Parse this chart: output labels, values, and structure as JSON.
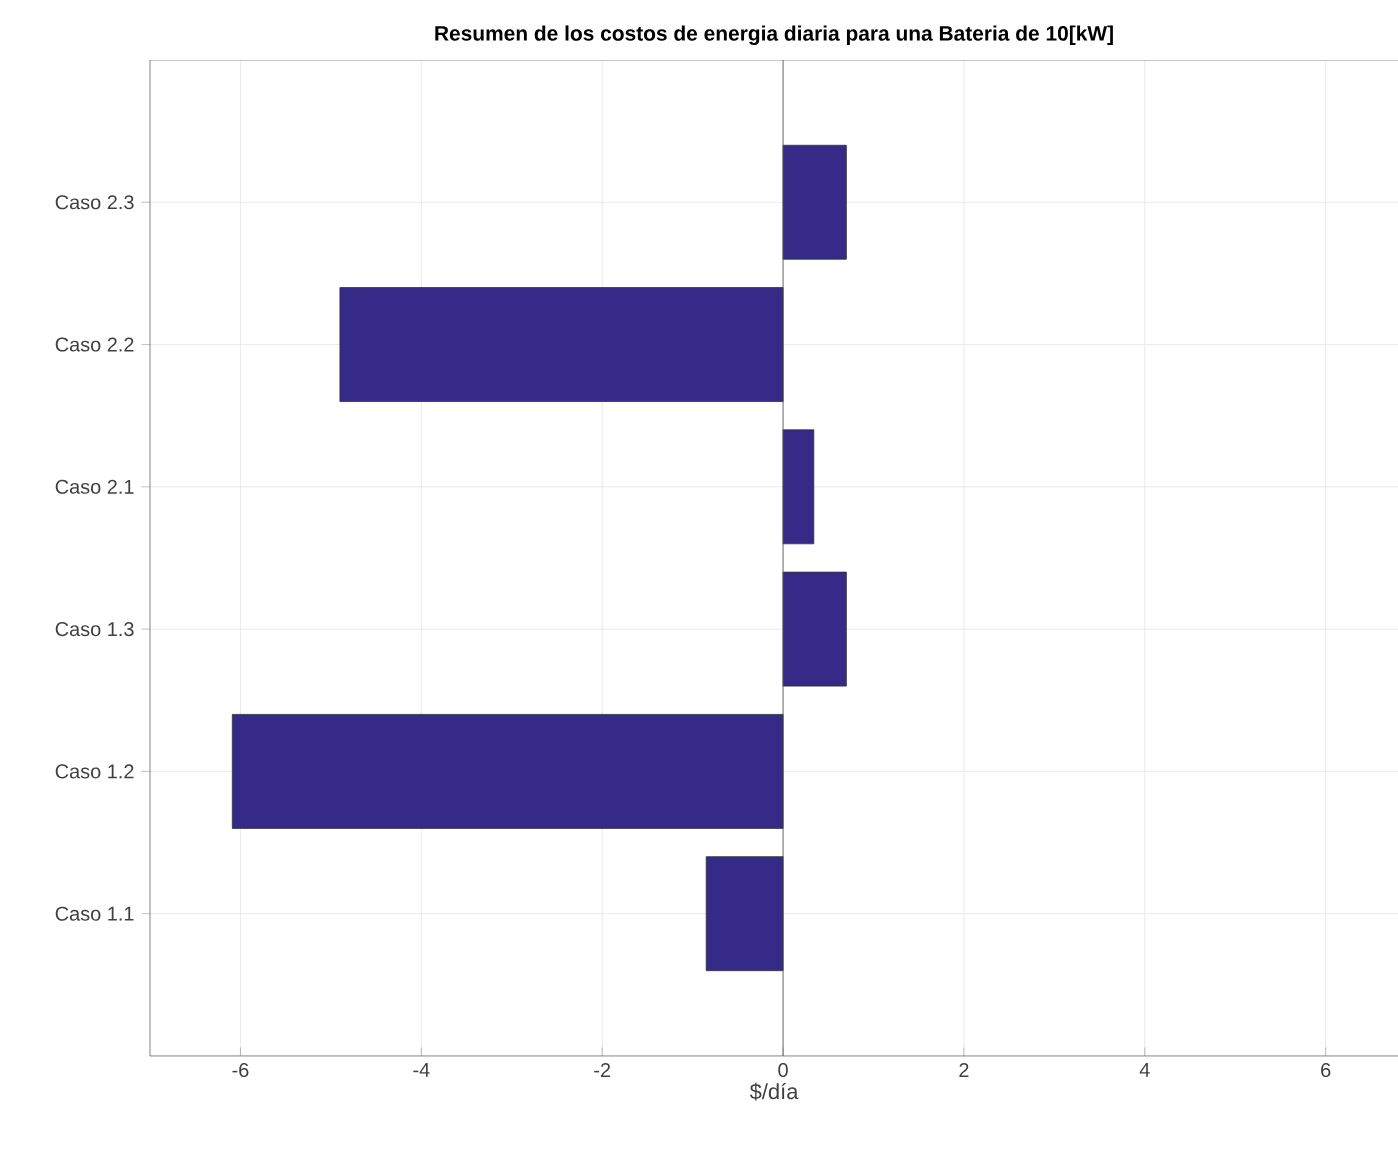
{
  "chart_data": {
    "type": "bar",
    "orientation": "horizontal",
    "title": "Resumen de los costos de energia diaria para una Bateria de 10[kW]",
    "xlabel": "$/día",
    "categories": [
      "Caso 2.3",
      "Caso 2.2",
      "Caso 2.1",
      "Caso 1.3",
      "Caso 1.2",
      "Caso 1.1"
    ],
    "values": [
      0.7,
      -4.9,
      0.34,
      0.7,
      -6.09,
      -0.85
    ],
    "color": "#352a87",
    "xlim": [
      -7,
      6.8
    ],
    "xticks": [
      -6,
      -4,
      -2,
      0,
      2,
      4,
      6
    ],
    "grid": true
  }
}
